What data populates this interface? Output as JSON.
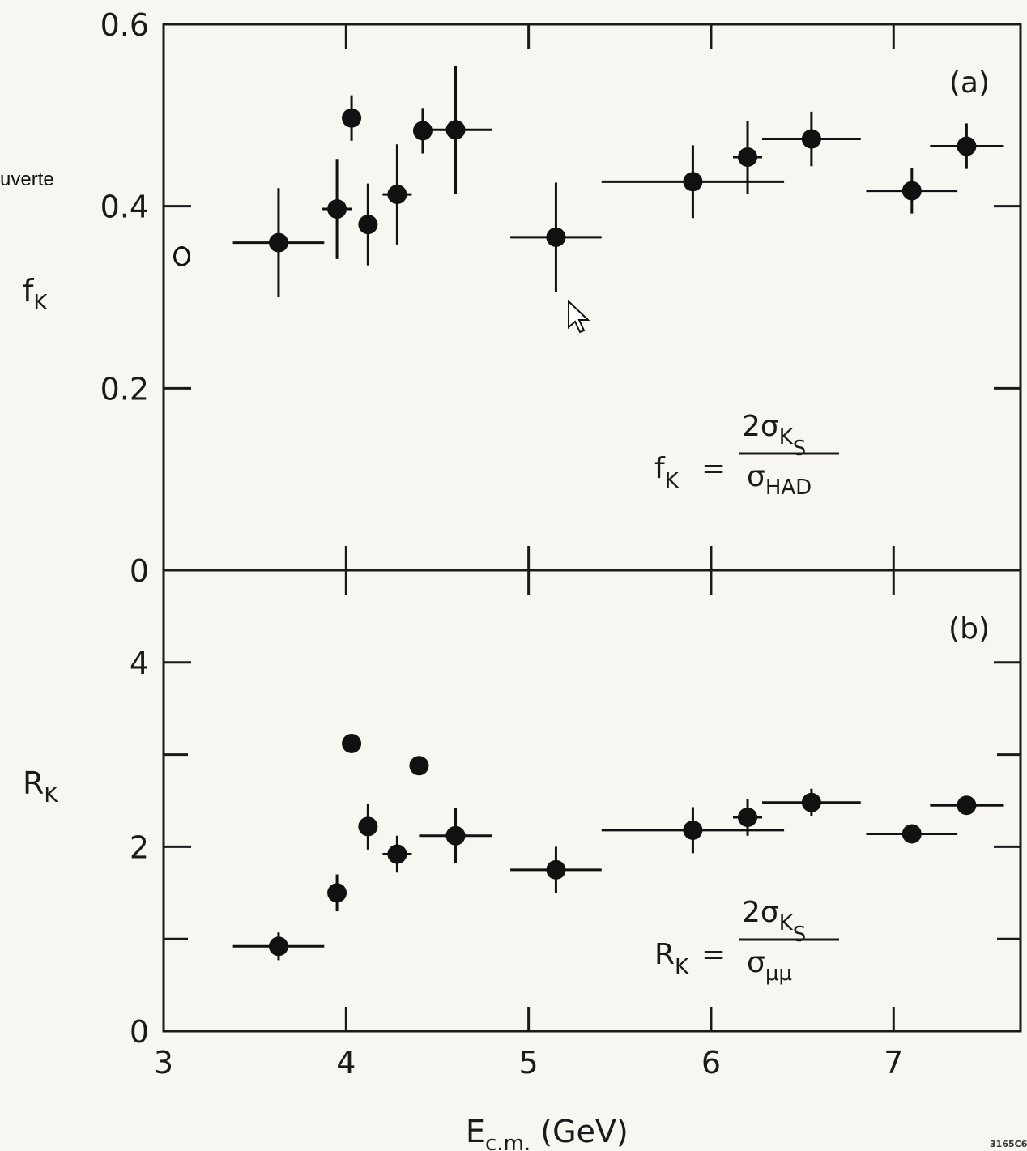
{
  "overlay_text": "uverte",
  "figure_code": "3165C6",
  "chart_data": [
    {
      "panel": "(a)",
      "type": "scatter",
      "ylabel": "f",
      "ylabel_sub": "K",
      "xlim": [
        3,
        7.7
      ],
      "ylim": [
        0,
        0.6
      ],
      "yticks": [
        "0",
        "0.2",
        "0.4",
        "0.6"
      ],
      "ytick_values": [
        0,
        0.2,
        0.4,
        0.6
      ],
      "xtick_values": [
        4,
        5,
        6,
        7
      ],
      "formula": {
        "lhs": "f",
        "lhs_sub": "K",
        "eq": "=",
        "num": "2σ",
        "num_sub": "K",
        "num_subsub": "S",
        "den": "σ",
        "den_sub": "HAD"
      },
      "open_points": [
        {
          "x": 3.1,
          "y": 0.345
        }
      ],
      "points": [
        {
          "x": 3.63,
          "y": 0.36,
          "xerr": 0.25,
          "yerr": 0.06
        },
        {
          "x": 3.95,
          "y": 0.397,
          "xerr": 0.08,
          "yerr": 0.055
        },
        {
          "x": 4.03,
          "y": 0.497,
          "xerr": 0.0,
          "yerr": 0.025
        },
        {
          "x": 4.12,
          "y": 0.38,
          "xerr": 0.0,
          "yerr": 0.045
        },
        {
          "x": 4.28,
          "y": 0.413,
          "xerr": 0.08,
          "yerr": 0.055
        },
        {
          "x": 4.42,
          "y": 0.483,
          "xerr": 0.0,
          "yerr": 0.025
        },
        {
          "x": 4.6,
          "y": 0.484,
          "xerr": 0.2,
          "yerr": 0.07
        },
        {
          "x": 5.15,
          "y": 0.366,
          "xerr": 0.25,
          "yerr": 0.06
        },
        {
          "x": 5.9,
          "y": 0.427,
          "xerr": 0.5,
          "yerr": 0.04
        },
        {
          "x": 6.2,
          "y": 0.454,
          "xerr": 0.08,
          "yerr": 0.04
        },
        {
          "x": 6.55,
          "y": 0.474,
          "xerr": 0.27,
          "yerr": 0.03
        },
        {
          "x": 7.1,
          "y": 0.417,
          "xerr": 0.25,
          "yerr": 0.025
        },
        {
          "x": 7.4,
          "y": 0.466,
          "xerr": 0.2,
          "yerr": 0.025
        }
      ]
    },
    {
      "panel": "(b)",
      "type": "scatter",
      "ylabel": "R",
      "ylabel_sub": "K",
      "xlabel": "E",
      "xlabel_sub": "c.m.",
      "xlabel_unit": "(GeV)",
      "xlim": [
        3,
        7.7
      ],
      "ylim": [
        0,
        5
      ],
      "yticks": [
        "0",
        "2",
        "4"
      ],
      "ytick_values": [
        0,
        2,
        4
      ],
      "ytick_minor": [
        1,
        3
      ],
      "xticks": [
        "3",
        "4",
        "5",
        "6",
        "7"
      ],
      "xtick_values": [
        3,
        4,
        5,
        6,
        7
      ],
      "formula": {
        "lhs": "R",
        "lhs_sub": "K",
        "eq": "=",
        "num": "2σ",
        "num_sub": "K",
        "num_subsub": "S",
        "den": "σ",
        "den_sub": "μμ"
      },
      "points": [
        {
          "x": 3.63,
          "y": 0.92,
          "xerr": 0.25,
          "yerr": 0.15
        },
        {
          "x": 3.95,
          "y": 1.5,
          "xerr": 0.0,
          "yerr": 0.2
        },
        {
          "x": 4.03,
          "y": 3.12,
          "xerr": 0.0,
          "yerr": 0.1
        },
        {
          "x": 4.12,
          "y": 2.22,
          "xerr": 0.0,
          "yerr": 0.25
        },
        {
          "x": 4.28,
          "y": 1.92,
          "xerr": 0.08,
          "yerr": 0.2
        },
        {
          "x": 4.4,
          "y": 2.88,
          "xerr": 0.0,
          "yerr": 0.1
        },
        {
          "x": 4.6,
          "y": 2.12,
          "xerr": 0.2,
          "yerr": 0.3
        },
        {
          "x": 5.15,
          "y": 1.75,
          "xerr": 0.25,
          "yerr": 0.25
        },
        {
          "x": 5.9,
          "y": 2.18,
          "xerr": 0.5,
          "yerr": 0.25
        },
        {
          "x": 6.2,
          "y": 2.32,
          "xerr": 0.08,
          "yerr": 0.2
        },
        {
          "x": 6.55,
          "y": 2.48,
          "xerr": 0.27,
          "yerr": 0.15
        },
        {
          "x": 7.1,
          "y": 2.14,
          "xerr": 0.25,
          "yerr": 0.1
        },
        {
          "x": 7.4,
          "y": 2.45,
          "xerr": 0.2,
          "yerr": 0.1
        }
      ]
    }
  ]
}
